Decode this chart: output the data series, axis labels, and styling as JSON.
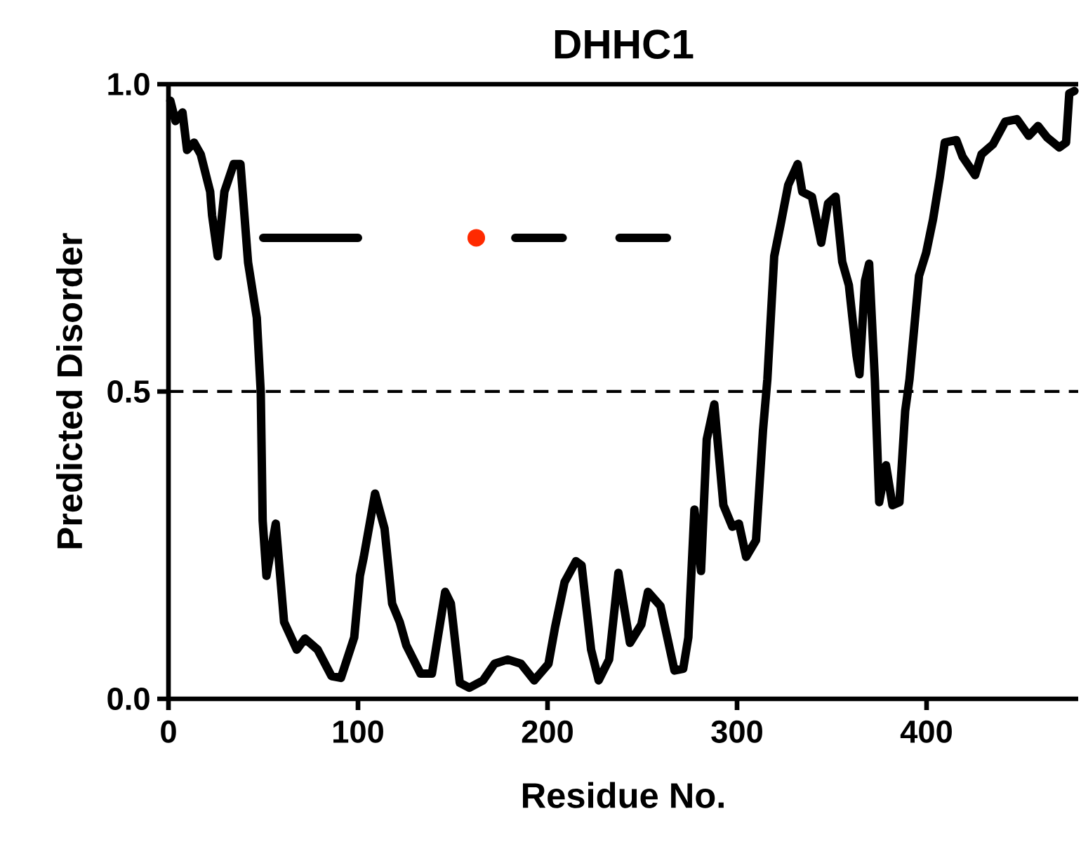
{
  "chart_data": {
    "type": "line",
    "title": "DHHC1",
    "xlabel": "Residue No.",
    "ylabel": "Predicted Disorder",
    "xlim": [
      0,
      480
    ],
    "xticks": [
      0,
      100,
      200,
      300,
      400
    ],
    "ylim": [
      0,
      1
    ],
    "yticks": [
      {
        "value": 0,
        "label": "0.0"
      },
      {
        "value": 0.5,
        "label": "0.5"
      },
      {
        "value": 1,
        "label": "1.0"
      }
    ],
    "grid": false,
    "marker": "none",
    "line_style": "solid",
    "ref_lines": [
      {
        "axis": "y",
        "value": 0.5,
        "line_style": "dashed",
        "color": "#000000"
      }
    ],
    "series": [
      {
        "color": "#000000",
        "x": [
          1,
          3.7,
          7.4,
          9.8,
          13.5,
          17,
          22,
          23,
          26,
          29.5,
          34.4,
          38,
          42,
          46.6,
          48.7,
          49.7,
          51.7,
          56.6,
          61,
          67.7,
          72,
          78.7,
          86,
          91,
          98,
          101,
          103,
          109,
          114,
          118,
          122,
          125.5,
          133,
          139,
          146,
          149,
          153.7,
          158.7,
          166,
          172,
          179,
          186,
          193,
          200.5,
          204,
          209,
          215,
          218,
          223,
          227,
          232.5,
          237.4,
          243.5,
          249.5,
          253,
          259.6,
          267,
          271.6,
          274.3,
          277.5,
          281,
          284,
          288,
          292.8,
          297.5,
          301,
          304.8,
          310,
          313.7,
          316,
          319.6,
          323,
          327,
          332,
          334.4,
          339.5,
          344.4,
          348,
          352,
          355.5,
          359,
          363,
          364.6,
          367.5,
          369.7,
          372.7,
          375,
          378.6,
          382,
          385.7,
          388.7,
          391,
          396,
          399.8,
          403.4,
          407,
          409.6,
          415.7,
          419,
          425.6,
          429,
          435,
          441.5,
          447.7,
          453.9,
          458.8,
          463.7,
          470,
          473.6,
          475.3,
          478
        ],
        "values": [
          0.973,
          0.94,
          0.954,
          0.893,
          0.905,
          0.886,
          0.825,
          0.787,
          0.72,
          0.825,
          0.87,
          0.87,
          0.71,
          0.62,
          0.498,
          0.29,
          0.2,
          0.285,
          0.125,
          0.08,
          0.098,
          0.08,
          0.037,
          0.034,
          0.1,
          0.2,
          0.23,
          0.334,
          0.277,
          0.155,
          0.125,
          0.087,
          0.041,
          0.041,
          0.174,
          0.155,
          0.026,
          0.018,
          0.03,
          0.057,
          0.064,
          0.057,
          0.03,
          0.057,
          0.117,
          0.19,
          0.224,
          0.217,
          0.08,
          0.03,
          0.064,
          0.205,
          0.091,
          0.121,
          0.174,
          0.151,
          0.046,
          0.049,
          0.1,
          0.308,
          0.208,
          0.422,
          0.479,
          0.315,
          0.28,
          0.285,
          0.231,
          0.258,
          0.437,
          0.52,
          0.72,
          0.772,
          0.836,
          0.87,
          0.825,
          0.817,
          0.742,
          0.806,
          0.817,
          0.711,
          0.673,
          0.559,
          0.528,
          0.68,
          0.708,
          0.52,
          0.32,
          0.38,
          0.315,
          0.32,
          0.468,
          0.52,
          0.688,
          0.726,
          0.78,
          0.848,
          0.905,
          0.909,
          0.882,
          0.852,
          0.886,
          0.902,
          0.939,
          0.943,
          0.916,
          0.932,
          0.913,
          0.897,
          0.905,
          0.985,
          0.989
        ]
      },
      {
        "color": "#000000",
        "x": [
          50,
          100,
          140,
          183,
          208,
          225,
          238,
          263
        ],
        "values": [
          0.75,
          0.75,
          null,
          0.75,
          0.75,
          null,
          0.75,
          0.75
        ]
      },
      {
        "type": "scatter",
        "color": "#ff2a00",
        "marker": "circle",
        "x": [
          162.4
        ],
        "values": [
          0.75
        ]
      }
    ]
  }
}
